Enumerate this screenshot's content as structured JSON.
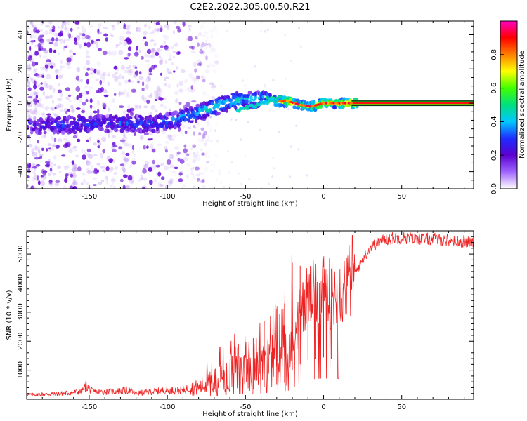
{
  "figure": {
    "title": "C2E2.2022.305.00.50.R21"
  },
  "colors": {
    "snr_line": "#ee2222",
    "spectrum_purple": "#7a1fd6",
    "colorbar_stops": [
      "#ffffff",
      "#a066ff",
      "#5b00d0",
      "#1e2cff",
      "#00c8ff",
      "#00e080",
      "#40ff00",
      "#ffff00",
      "#ff8000",
      "#ff0000",
      "#ff00c0"
    ]
  },
  "chart_data": [
    {
      "type": "heatmap",
      "title": "",
      "xlabel": "Height of straight line (km)",
      "ylabel": "Frequency (Hz)",
      "xlim": [
        -190,
        96
      ],
      "ylim": [
        -50,
        48
      ],
      "x_ticks": [
        -150,
        -100,
        -50,
        0,
        50
      ],
      "y_ticks": [
        -40,
        -20,
        0,
        20,
        40
      ],
      "ridge": {
        "x": [
          -185,
          -170,
          -150,
          -130,
          -110,
          -95,
          -85,
          -75,
          -65,
          -55,
          -45,
          -38,
          -30,
          -22,
          -15,
          -8,
          0,
          10,
          20,
          95
        ],
        "frequency": [
          -13,
          -13,
          -12,
          -12,
          -12,
          -10,
          -7,
          -4,
          -1,
          2,
          2,
          4,
          1,
          1,
          -1,
          -2,
          0,
          0,
          0,
          0
        ],
        "amplitude": [
          0.25,
          0.28,
          0.3,
          0.3,
          0.3,
          0.35,
          0.4,
          0.45,
          0.45,
          0.45,
          0.4,
          0.45,
          0.6,
          0.8,
          0.6,
          0.65,
          0.7,
          0.75,
          0.85,
          0.9
        ]
      },
      "noise_extent_x": [
        -190,
        -85
      ],
      "colorbar": {
        "label": "Normalized spectral amplitude",
        "range": [
          0,
          1
        ],
        "ticks": [
          "0.0",
          "0.2",
          "0.4",
          "0.6",
          "0.8"
        ]
      }
    },
    {
      "type": "line",
      "title": "",
      "xlabel": "Height of straight line (km)",
      "ylabel": "SNR (10 * v/v)",
      "xlim": [
        -190,
        96
      ],
      "ylim": [
        0,
        5800
      ],
      "x_ticks": [
        -150,
        -100,
        -50,
        0,
        50
      ],
      "y_ticks": [
        1000,
        2000,
        3000,
        4000,
        5000
      ],
      "series": [
        {
          "x": [
            -190,
            -170,
            -155,
            -152,
            -148,
            -135,
            -125,
            -120,
            -110,
            -100,
            -90,
            -85,
            -80,
            -75,
            -70,
            -65,
            -60,
            -55,
            -50,
            -45,
            -40,
            -35,
            -30,
            -25,
            -22,
            -20,
            -18,
            -15,
            -10,
            -5,
            0,
            5,
            10,
            15,
            20,
            25,
            30,
            35,
            40,
            50,
            60,
            70,
            80,
            90,
            96
          ],
          "y": [
            150,
            180,
            250,
            450,
            250,
            250,
            300,
            200,
            250,
            300,
            300,
            400,
            350,
            500,
            600,
            700,
            800,
            900,
            800,
            900,
            1000,
            1200,
            1300,
            1400,
            1500,
            2500,
            2000,
            3000,
            3400,
            3500,
            3600,
            3500,
            3600,
            3800,
            4300,
            4800,
            5200,
            5400,
            5500,
            5550,
            5500,
            5500,
            5450,
            5400,
            5400
          ],
          "spike_x": [
            -45,
            -38,
            -30,
            -25,
            -20,
            -15,
            -10,
            -5,
            0,
            5
          ],
          "spike_y": [
            2100,
            2700,
            3100,
            3300,
            4700,
            4600,
            4300,
            4200,
            4000,
            4500
          ]
        }
      ]
    }
  ]
}
